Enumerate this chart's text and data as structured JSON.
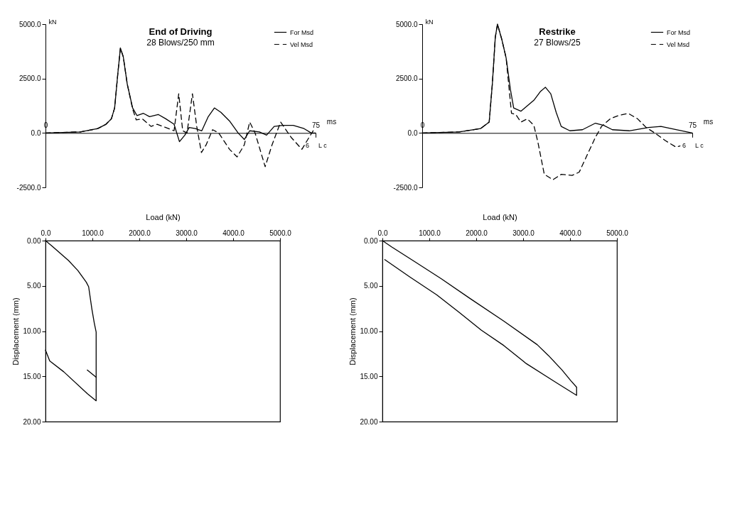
{
  "chart_data": [
    {
      "type": "line",
      "title": "End of Driving",
      "subtitle": "28 Blows/250 mm",
      "xlabel": "ms",
      "ylabel": "kN",
      "xlim": [
        0,
        75
      ],
      "xticks": [
        {
          "value": 0,
          "label": "0"
        },
        {
          "value": 75,
          "label": "75"
        }
      ],
      "ylim": [
        -2500,
        5000
      ],
      "yticks": [
        {
          "value": 5000,
          "label": "5000.0"
        },
        {
          "value": 2500,
          "label": "2500.0"
        },
        {
          "value": 0,
          "label": "0.0"
        },
        {
          "value": -2500,
          "label": "-2500.0"
        }
      ],
      "legend": "top right",
      "annotations": [
        "6",
        "L c"
      ],
      "series": [
        {
          "name": "For Msd",
          "color": "#000000",
          "line_style": "solid",
          "x": [
            0,
            9.7,
            14.5,
            16.8,
            18.3,
            19.2,
            20.1,
            20.8,
            21.6,
            22.7,
            24.2,
            25.4,
            27.2,
            28.9,
            31.3,
            33.4,
            35.7,
            37.2,
            38.7,
            39.9,
            41.6,
            43.4,
            45.2,
            46.9,
            48.7,
            51.1,
            53.5,
            55.2,
            56.7,
            59.4,
            61.4,
            63.5,
            65.9,
            68.8,
            71.8,
            73.8,
            75
          ],
          "values": [
            0,
            50,
            200,
            400,
            650,
            1150,
            2750,
            3900,
            3500,
            2250,
            1150,
            800,
            900,
            750,
            850,
            650,
            400,
            -400,
            -100,
            250,
            200,
            100,
            750,
            1150,
            950,
            550,
            0,
            -300,
            100,
            50,
            -100,
            300,
            350,
            350,
            200,
            0,
            0
          ]
        },
        {
          "name": "Vel Msd",
          "color": "#000000",
          "line_style": "dashed",
          "x": [
            0,
            9.7,
            14.5,
            16.8,
            18.3,
            19.2,
            20.1,
            20.8,
            21.6,
            22.7,
            24.2,
            25.2,
            26.9,
            29.3,
            31,
            33.4,
            35.7,
            37,
            38.1,
            39.3,
            40.8,
            42,
            43.3,
            44.6,
            46.4,
            48.1,
            51.1,
            53.2,
            55.2,
            56.7,
            58.2,
            61,
            62.9,
            65.3,
            68.2,
            71.2,
            73.2,
            74.7
          ],
          "values": [
            0,
            50,
            200,
            400,
            650,
            1150,
            2750,
            3900,
            3500,
            2250,
            1100,
            600,
            650,
            300,
            400,
            250,
            100,
            1800,
            100,
            0,
            1800,
            300,
            -900,
            -550,
            150,
            0,
            -750,
            -1100,
            -550,
            500,
            0,
            -1550,
            -550,
            500,
            -200,
            -750,
            -200,
            200
          ]
        }
      ]
    },
    {
      "type": "line",
      "title": "Restrike",
      "subtitle": "27 Blows/25",
      "xlabel": "ms",
      "ylabel": "kN",
      "xlim": [
        0,
        75
      ],
      "xticks": [
        {
          "value": 0,
          "label": "0"
        },
        {
          "value": 75,
          "label": "75"
        }
      ],
      "ylim": [
        -2500,
        5000
      ],
      "yticks": [
        {
          "value": 5000,
          "label": "5000.0"
        },
        {
          "value": 2500,
          "label": "2500.0"
        },
        {
          "value": 0,
          "label": "0.0"
        },
        {
          "value": -2500,
          "label": "-2500.0"
        }
      ],
      "legend": "top right",
      "annotations": [
        "6",
        "L c"
      ],
      "series": [
        {
          "name": "For Msd",
          "color": "#000000",
          "line_style": "solid",
          "x": [
            0,
            10.3,
            16.2,
            18.6,
            19.5,
            20.3,
            20.9,
            22.1,
            23.3,
            24.5,
            25.4,
            27.4,
            29.2,
            31,
            32.8,
            34.2,
            35.7,
            37.2,
            38.6,
            41,
            44.5,
            48.1,
            50.4,
            52.8,
            57.5,
            62.8,
            66.3,
            70.5,
            75
          ],
          "values": [
            0,
            50,
            200,
            500,
            2300,
            4400,
            5000,
            4300,
            3450,
            2000,
            1150,
            1000,
            1250,
            1500,
            1900,
            2100,
            1800,
            950,
            300,
            100,
            150,
            450,
            350,
            150,
            100,
            250,
            300,
            150,
            0
          ]
        },
        {
          "name": "Vel Msd",
          "color": "#000000",
          "line_style": "dashed",
          "x": [
            0,
            10.3,
            16.2,
            18.6,
            19.5,
            20.3,
            20.9,
            22.1,
            23.3,
            24.8,
            26,
            27.4,
            29.2,
            31,
            32.1,
            33.9,
            36.3,
            38.6,
            41.6,
            43.6,
            45.7,
            48.1,
            49.8,
            52.2,
            54.5,
            57.2,
            59.8,
            62.2,
            64.6,
            67.5,
            70.5,
            71.6
          ],
          "values": [
            0,
            50,
            200,
            500,
            2300,
            4400,
            5000,
            4300,
            3450,
            900,
            850,
            500,
            650,
            350,
            -400,
            -1900,
            -2150,
            -1900,
            -1950,
            -1800,
            -1050,
            -200,
            300,
            650,
            800,
            900,
            650,
            250,
            0,
            -350,
            -650,
            -600
          ]
        }
      ]
    },
    {
      "type": "line",
      "xlabel": "Load (kN)",
      "ylabel": "Displacement (mm)",
      "xlim": [
        0,
        5000
      ],
      "xticks": [
        {
          "value": 0,
          "label": "0.0"
        },
        {
          "value": 1000,
          "label": "1000.0"
        },
        {
          "value": 2000,
          "label": "2000.0"
        },
        {
          "value": 3000,
          "label": "3000.0"
        },
        {
          "value": 4000,
          "label": "4000.0"
        },
        {
          "value": 5000,
          "label": "5000.0"
        }
      ],
      "ylim": [
        20,
        0
      ],
      "yticks": [
        {
          "value": 0,
          "label": "0.00"
        },
        {
          "value": 5,
          "label": "5.00"
        },
        {
          "value": 10,
          "label": "10.00"
        },
        {
          "value": 15,
          "label": "15.00"
        },
        {
          "value": 20,
          "label": "20.00"
        }
      ],
      "series": [
        {
          "color": "#000000",
          "line_style": "solid",
          "x": [
            0,
            140,
            490,
            690,
            870,
            920,
            990,
            1040,
            1080,
            1080,
            1080,
            890,
            390,
            90,
            0
          ],
          "values": [
            0,
            0.6,
            2.2,
            3.3,
            4.6,
            5.1,
            7.6,
            9.1,
            10.1,
            15,
            17.7,
            16.9,
            14.5,
            13.3,
            12.1
          ]
        },
        {
          "color": "#000000",
          "line_style": "solid",
          "x": [
            890,
            1080
          ],
          "values": [
            14.3,
            15.1
          ]
        }
      ]
    },
    {
      "type": "line",
      "xlabel": "Load (kN)",
      "ylabel": "Displacement (mm)",
      "xlim": [
        0,
        5000
      ],
      "xticks": [
        {
          "value": 0,
          "label": "0.0"
        },
        {
          "value": 1000,
          "label": "1000.0"
        },
        {
          "value": 2000,
          "label": "2000.0"
        },
        {
          "value": 3000,
          "label": "3000.0"
        },
        {
          "value": 4000,
          "label": "4000.0"
        },
        {
          "value": 5000,
          "label": "5000.0"
        }
      ],
      "ylim": [
        20,
        0
      ],
      "yticks": [
        {
          "value": 0,
          "label": "0.00"
        },
        {
          "value": 5,
          "label": "5.00"
        },
        {
          "value": 10,
          "label": "10.00"
        },
        {
          "value": 15,
          "label": "15.00"
        },
        {
          "value": 20,
          "label": "20.00"
        }
      ],
      "series": [
        {
          "color": "#000000",
          "line_style": "solid",
          "x": [
            0,
            200,
            680,
            1250,
            1870,
            2590,
            3300,
            3540,
            3830,
            4020,
            4140,
            4140,
            3740,
            3070,
            2590,
            2110,
            1630,
            1160,
            580,
            50
          ],
          "values": [
            0,
            0.7,
            2.3,
            4.2,
            6.4,
            8.9,
            11.5,
            12.7,
            14.3,
            15.5,
            16.2,
            17.1,
            15.8,
            13.6,
            11.6,
            9.9,
            7.9,
            6,
            4,
            2.1
          ]
        }
      ]
    }
  ]
}
